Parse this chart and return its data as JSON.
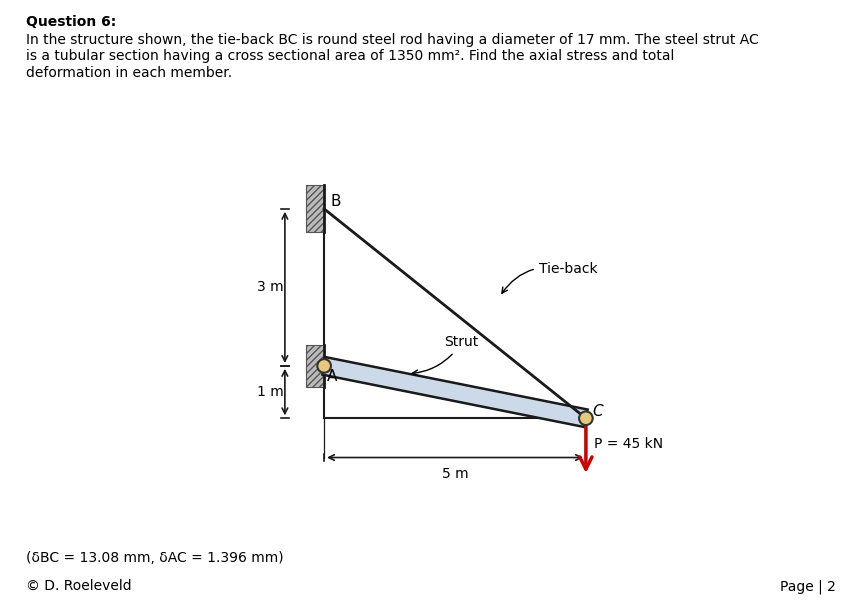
{
  "title_q": "Question 6:",
  "description": "In the structure shown, the tie-back BC is round steel rod having a diameter of 17 mm. The steel strut AC\nis a tubular section having a cross sectional area of 1350 mm². Find the axial stress and total\ndeformation in each member.",
  "answer_text": "(δBC = 13.08 mm, δAC = 1.396 mm)",
  "copyright": "© D. Roeleveld",
  "page": "Page | 2",
  "bg_color": "#ffffff",
  "B": [
    0.0,
    3.0
  ],
  "A": [
    0.0,
    0.0
  ],
  "C": [
    5.0,
    -1.0
  ],
  "strut_color": "#ccd9e8",
  "strut_edge_color": "#1a1a1a",
  "tie_color": "#1a1a1a",
  "arrow_color": "#cc0000",
  "dim_color": "#1a1a1a",
  "wall_fill": "#bbbbbb",
  "wall_edge": "#555555",
  "pin_fill": "#e8c87a"
}
